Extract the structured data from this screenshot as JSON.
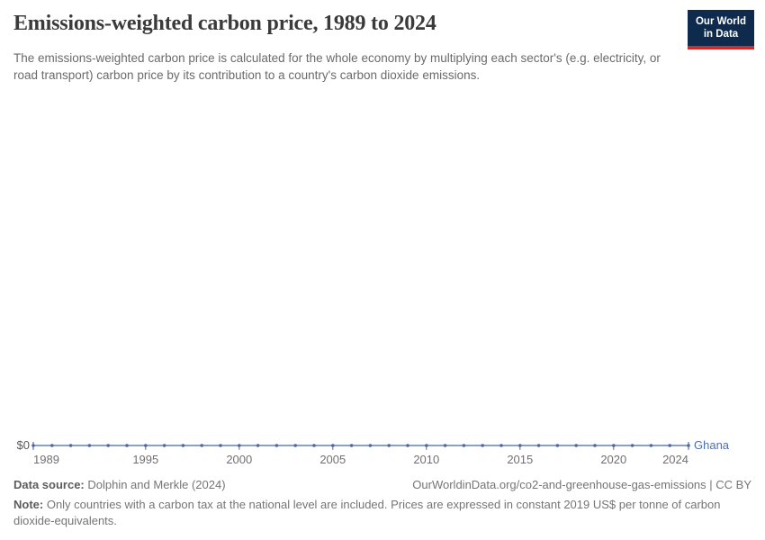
{
  "header": {
    "title": "Emissions-weighted carbon price, 1989 to 2024",
    "subtitle": "The emissions-weighted carbon price is calculated for the whole economy by multiplying each sector's (e.g. electricity, or road transport) carbon price by its contribution to a country's carbon dioxide emissions.",
    "logo": {
      "line1": "Our World",
      "line2": "in Data"
    }
  },
  "chart_data": {
    "type": "line",
    "title": "Emissions-weighted carbon price, 1989 to 2024",
    "x": [
      1989,
      1990,
      1991,
      1992,
      1993,
      1994,
      1995,
      1996,
      1997,
      1998,
      1999,
      2000,
      2001,
      2002,
      2003,
      2004,
      2005,
      2006,
      2007,
      2008,
      2009,
      2010,
      2011,
      2012,
      2013,
      2014,
      2015,
      2016,
      2017,
      2018,
      2019,
      2020,
      2021,
      2022,
      2023,
      2024
    ],
    "series": [
      {
        "name": "Ghana",
        "values": [
          0,
          0,
          0,
          0,
          0,
          0,
          0,
          0,
          0,
          0,
          0,
          0,
          0,
          0,
          0,
          0,
          0,
          0,
          0,
          0,
          0,
          0,
          0,
          0,
          0,
          0,
          0,
          0,
          0,
          0,
          0,
          0,
          0,
          0,
          0,
          0
        ]
      }
    ],
    "x_tick_labels": [
      1989,
      1995,
      2000,
      2005,
      2010,
      2015,
      2020,
      2024
    ],
    "y_tick_label": "$0",
    "ylim": [
      0,
      0
    ],
    "grid": false,
    "legend_position": "end-of-line",
    "colors": {
      "line": "#6380b2",
      "marker": "#4a69a4",
      "entity_label": "#4e6fae",
      "axis_tick": "#6e6e6e",
      "tick_label": "#707070",
      "y_label": "#5a5a5a"
    }
  },
  "footer": {
    "source_label": "Data source:",
    "source_value": " Dolphin and Merkle (2024)",
    "attribution": "OurWorldinData.org/co2-and-greenhouse-gas-emissions | CC BY",
    "note_label": "Note:",
    "note_value": " Only countries with a carbon tax at the national level are included. Prices are expressed in constant 2019 US$ per tonne of carbon dioxide-equivalents."
  }
}
